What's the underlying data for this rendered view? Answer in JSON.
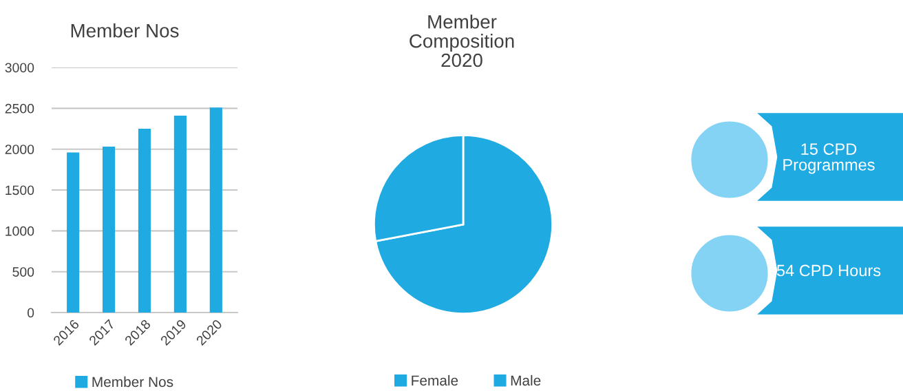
{
  "chart_data": [
    {
      "type": "bar",
      "title": "Member Nos",
      "categories": [
        "2016",
        "2017",
        "2018",
        "2019",
        "2020"
      ],
      "series": [
        {
          "name": "Member Nos",
          "color": "#1faae2",
          "values": [
            1960,
            2030,
            2250,
            2410,
            2510
          ]
        }
      ],
      "ylim": [
        0,
        3000
      ],
      "yticks": [
        0,
        500,
        1000,
        1500,
        2000,
        2500,
        3000
      ],
      "grid": "y",
      "legend": "bottom"
    },
    {
      "type": "pie",
      "title": "Member\nComposition\n2020",
      "categories": [
        "Female",
        "Male"
      ],
      "values": [
        72,
        28
      ],
      "colors": [
        "#1faae2",
        "#1faae2"
      ],
      "legend": "bottom"
    },
    {
      "type": "other",
      "annotations": [
        "15 CPD\nProgrammes",
        "54 CPD Hours"
      ]
    }
  ]
}
